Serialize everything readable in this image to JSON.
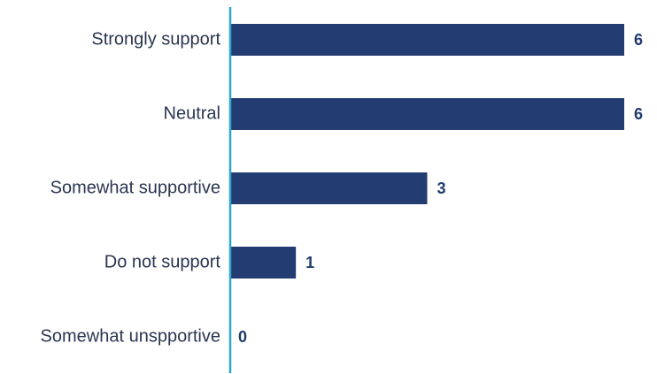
{
  "chart_data": {
    "type": "bar",
    "orientation": "horizontal",
    "categories": [
      "Strongly support",
      "Neutral",
      "Somewhat supportive",
      "Do not support",
      "Somewhat unspportive"
    ],
    "values": [
      6,
      6,
      3,
      1,
      0
    ],
    "title": "",
    "xlabel": "",
    "ylabel": "",
    "xlim": [
      0,
      6
    ],
    "grid": false,
    "legend": "none",
    "bar_color": "#233d73",
    "axis_color": "#2aa7c9",
    "value_label_color": "#1f3a6e",
    "category_label_color": "#2a3550"
  }
}
